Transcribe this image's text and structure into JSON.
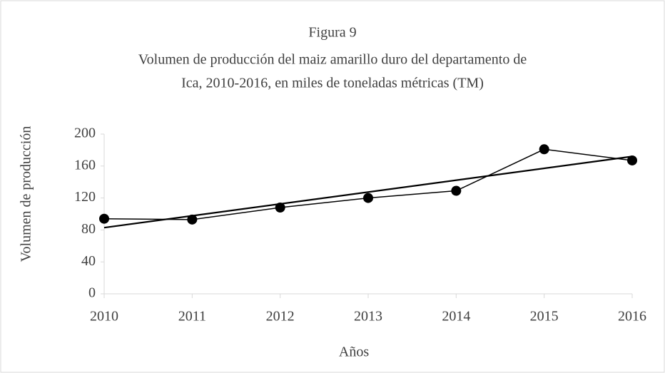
{
  "chart_data": {
    "type": "line",
    "title": [
      "Figura 9",
      "Volumen de producción del maiz amarillo duro del departamento de",
      "Ica, 2010-2016, en miles de toneladas métricas (TM)"
    ],
    "x_label": "Años",
    "y_label": "Volumen de producción",
    "x": [
      2010,
      2011,
      2012,
      2013,
      2014,
      2015,
      2016
    ],
    "series": [
      {
        "color": "#000000",
        "values": [
          94,
          93,
          108,
          120,
          129,
          181,
          167
        ]
      }
    ],
    "xlim": [
      2010,
      2016
    ],
    "xticks": [
      2010,
      2011,
      2012,
      2013,
      2014,
      2015,
      2016
    ],
    "ylim": [
      0,
      200
    ],
    "yticks": [
      0,
      40,
      80,
      120,
      160,
      200
    ],
    "trendline": "linear",
    "grid": false
  }
}
